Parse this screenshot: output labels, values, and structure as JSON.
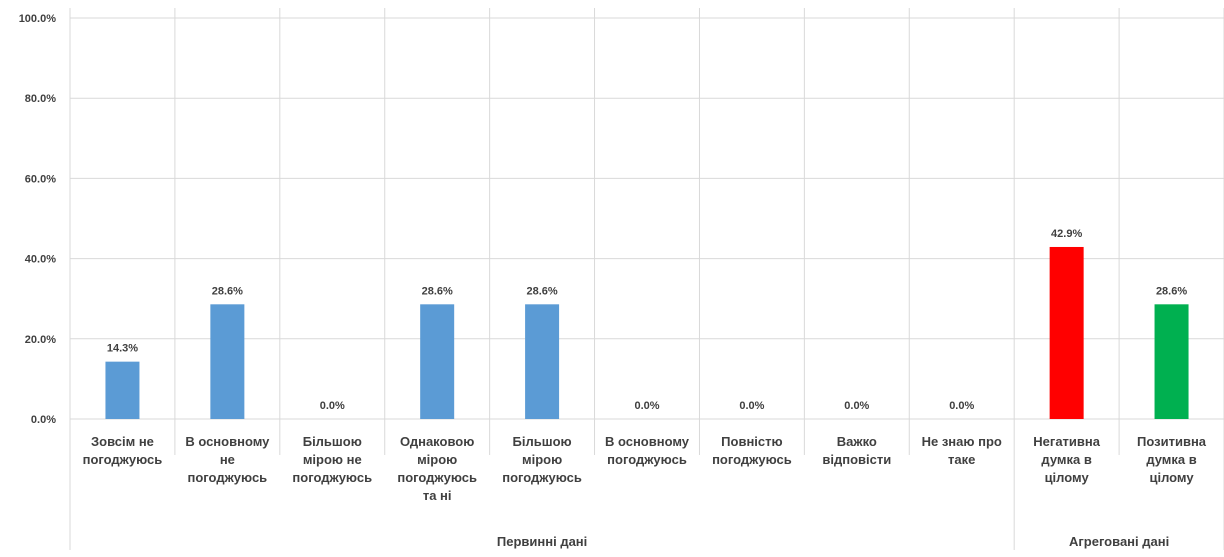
{
  "chart_data": {
    "type": "bar",
    "ylim": [
      0,
      100
    ],
    "y_ticks": [
      0,
      20,
      40,
      60,
      80,
      100
    ],
    "y_tick_labels": [
      "0.0%",
      "20.0%",
      "40.0%",
      "60.0%",
      "80.0%",
      "100.0%"
    ],
    "grid": true,
    "categories": [
      [
        "Зовсім не",
        "погоджуюсь"
      ],
      [
        "В основному",
        "не",
        "погоджуюсь"
      ],
      [
        "Більшою",
        "мірою не",
        "погоджуюсь"
      ],
      [
        "Однаковою",
        "мірою",
        "погоджуюсь",
        "та ні"
      ],
      [
        "Більшою",
        "мірою",
        "погоджуюсь"
      ],
      [
        "В основному",
        "погоджуюсь"
      ],
      [
        "Повністю",
        "погоджуюсь"
      ],
      [
        "Важко",
        "відповісти"
      ],
      [
        "Не знаю про",
        "таке"
      ],
      [
        "Негативна",
        "думка в",
        "цілому"
      ],
      [
        "Позитивна",
        "думка в",
        "цілому"
      ]
    ],
    "values": [
      14.3,
      28.6,
      0.0,
      28.6,
      28.6,
      0.0,
      0.0,
      0.0,
      0.0,
      42.9,
      28.6
    ],
    "data_labels": [
      "14.3%",
      "28.6%",
      "0.0%",
      "28.6%",
      "28.6%",
      "0.0%",
      "0.0%",
      "0.0%",
      "0.0%",
      "42.9%",
      "28.6%"
    ],
    "bar_colors": [
      "#5B9BD5",
      "#5B9BD5",
      "#5B9BD5",
      "#5B9BD5",
      "#5B9BD5",
      "#5B9BD5",
      "#5B9BD5",
      "#5B9BD5",
      "#5B9BD5",
      "#FF0000",
      "#00B050"
    ],
    "groups": [
      {
        "label": "Первинні дані",
        "start": 0,
        "end": 8
      },
      {
        "label": "Агреговані дані",
        "start": 9,
        "end": 10
      }
    ]
  },
  "colors": {
    "grid": "#D9D9D9",
    "text": "#404040"
  }
}
